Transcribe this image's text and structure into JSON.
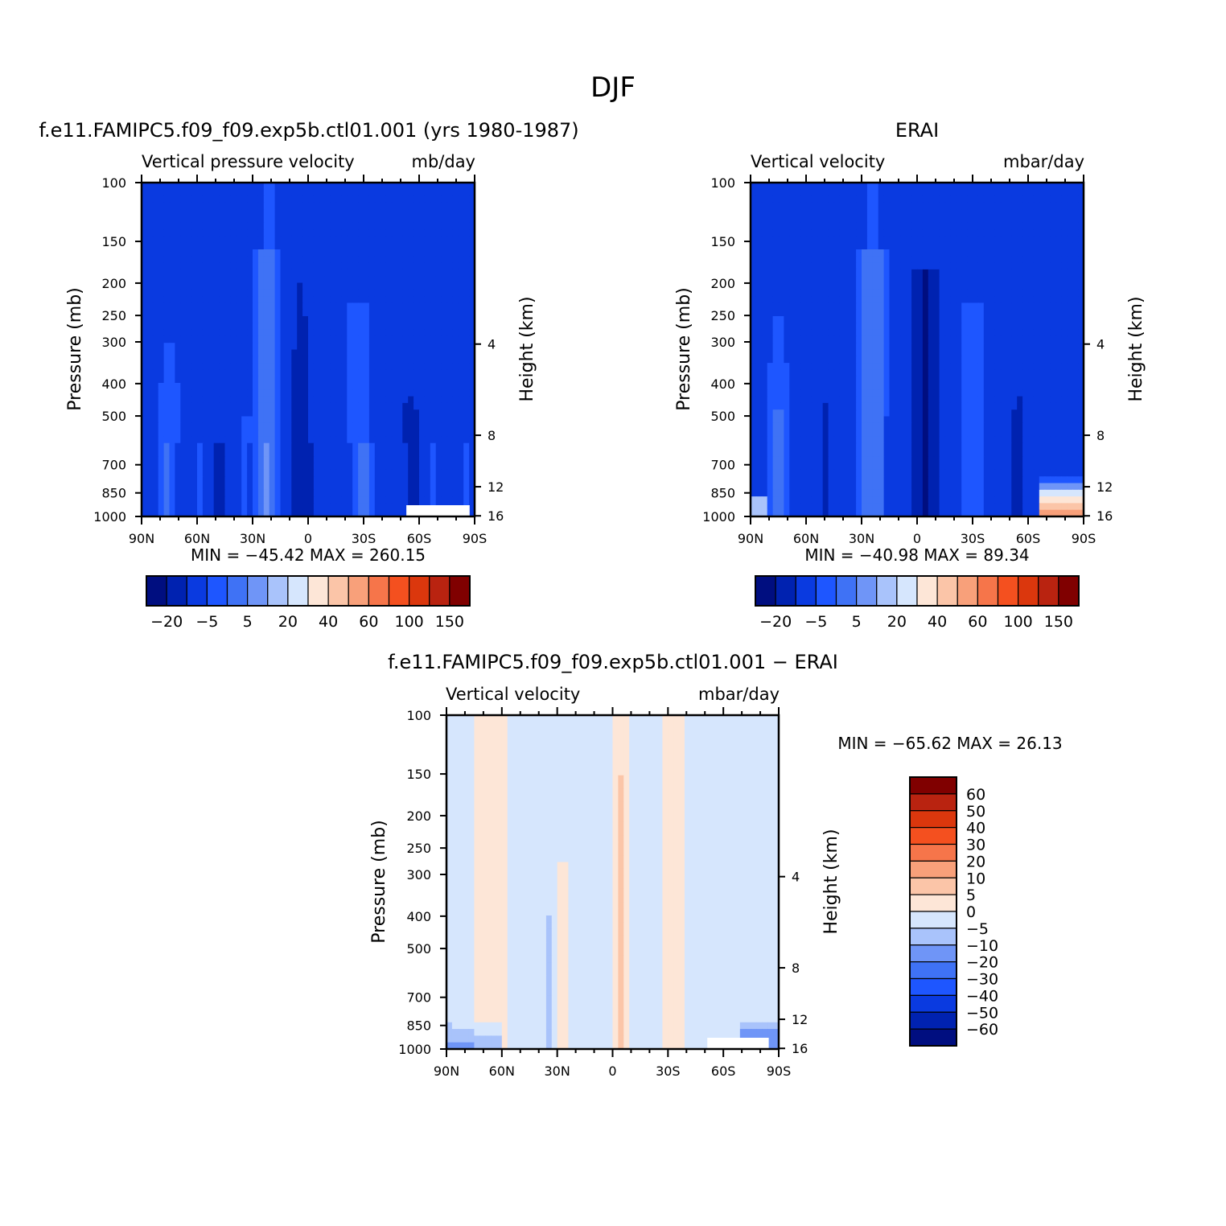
{
  "figure": {
    "title": "DJF"
  },
  "colors": {
    "model_scale": [
      "#000e80",
      "#0022b0",
      "#0a3ae0",
      "#1e56ff",
      "#3f72f5",
      "#6f95f7",
      "#a9c3fb",
      "#d6e6fd",
      "#fde6d7",
      "#fbc5a8",
      "#f8a07a",
      "#f6754a",
      "#f4501f",
      "#db370d",
      "#b92310",
      "#800000"
    ],
    "diff_scale": [
      "#000e80",
      "#0022b0",
      "#0a3ae0",
      "#1e56ff",
      "#3f72f5",
      "#6f95f7",
      "#a9c3fb",
      "#d6e6fd",
      "#fde6d7",
      "#fbc5a8",
      "#f8a07a",
      "#f6754a",
      "#f4501f",
      "#db370d",
      "#b92310",
      "#800000"
    ],
    "missing": "#ffffff"
  },
  "chart_data": [
    {
      "type": "heatmap",
      "panel": "model",
      "title": "f.e11.FAMIPC5.f09_f09.exp5b.ctl01.001 (yrs 1980-1987)",
      "left_string": "Vertical pressure velocity",
      "right_string": "mb/day",
      "ylabel": "Pressure (mb)",
      "ylabel_right": "Height (km)",
      "x_ticks": [
        "90N",
        "60N",
        "30N",
        "0",
        "30S",
        "60S",
        "90S"
      ],
      "y_ticks": [
        "100",
        "150",
        "200",
        "250",
        "300",
        "400",
        "500",
        "700",
        "850",
        "1000"
      ],
      "height_ticks": [
        "16",
        "12",
        "8",
        "4"
      ],
      "stats": "MIN = −45.42   MAX = 260.15",
      "colorbar_orientation": "horizontal",
      "colorbar_labels": [
        "−20",
        "−5",
        "5",
        "20",
        "40",
        "60",
        "100",
        "150"
      ],
      "ylim": [
        1000,
        100
      ],
      "xlim": [
        90,
        -90
      ]
    },
    {
      "type": "heatmap",
      "panel": "obs",
      "title": "ERAI",
      "left_string": "Vertical velocity",
      "right_string": "mbar/day",
      "ylabel": "Pressure (mb)",
      "ylabel_right": "Height (km)",
      "x_ticks": [
        "90N",
        "60N",
        "30N",
        "0",
        "30S",
        "60S",
        "90S"
      ],
      "y_ticks": [
        "100",
        "150",
        "200",
        "250",
        "300",
        "400",
        "500",
        "700",
        "850",
        "1000"
      ],
      "height_ticks": [
        "16",
        "12",
        "8",
        "4"
      ],
      "stats": "MIN = −40.98   MAX =  89.34",
      "colorbar_orientation": "horizontal",
      "colorbar_labels": [
        "−20",
        "−5",
        "5",
        "20",
        "40",
        "60",
        "100",
        "150"
      ],
      "ylim": [
        1000,
        100
      ],
      "xlim": [
        90,
        -90
      ]
    },
    {
      "type": "heatmap",
      "panel": "difference",
      "title": "f.e11.FAMIPC5.f09_f09.exp5b.ctl01.001 − ERAI",
      "left_string": "Vertical velocity",
      "right_string": "mbar/day",
      "ylabel": "Pressure (mb)",
      "ylabel_right": "Height (km)",
      "x_ticks": [
        "90N",
        "60N",
        "30N",
        "0",
        "30S",
        "60S",
        "90S"
      ],
      "y_ticks": [
        "100",
        "150",
        "200",
        "250",
        "300",
        "400",
        "500",
        "700",
        "850",
        "1000"
      ],
      "height_ticks": [
        "16",
        "12",
        "8",
        "4"
      ],
      "stats": "MIN = −65.62   MAX =   26.13",
      "colorbar_orientation": "vertical",
      "colorbar_labels": [
        "60",
        "50",
        "40",
        "30",
        "20",
        "10",
        "5",
        "0",
        "−5",
        "−10",
        "−20",
        "−30",
        "−40",
        "−50",
        "−60"
      ],
      "ylim": [
        1000,
        100
      ],
      "xlim": [
        90,
        -90
      ]
    }
  ]
}
